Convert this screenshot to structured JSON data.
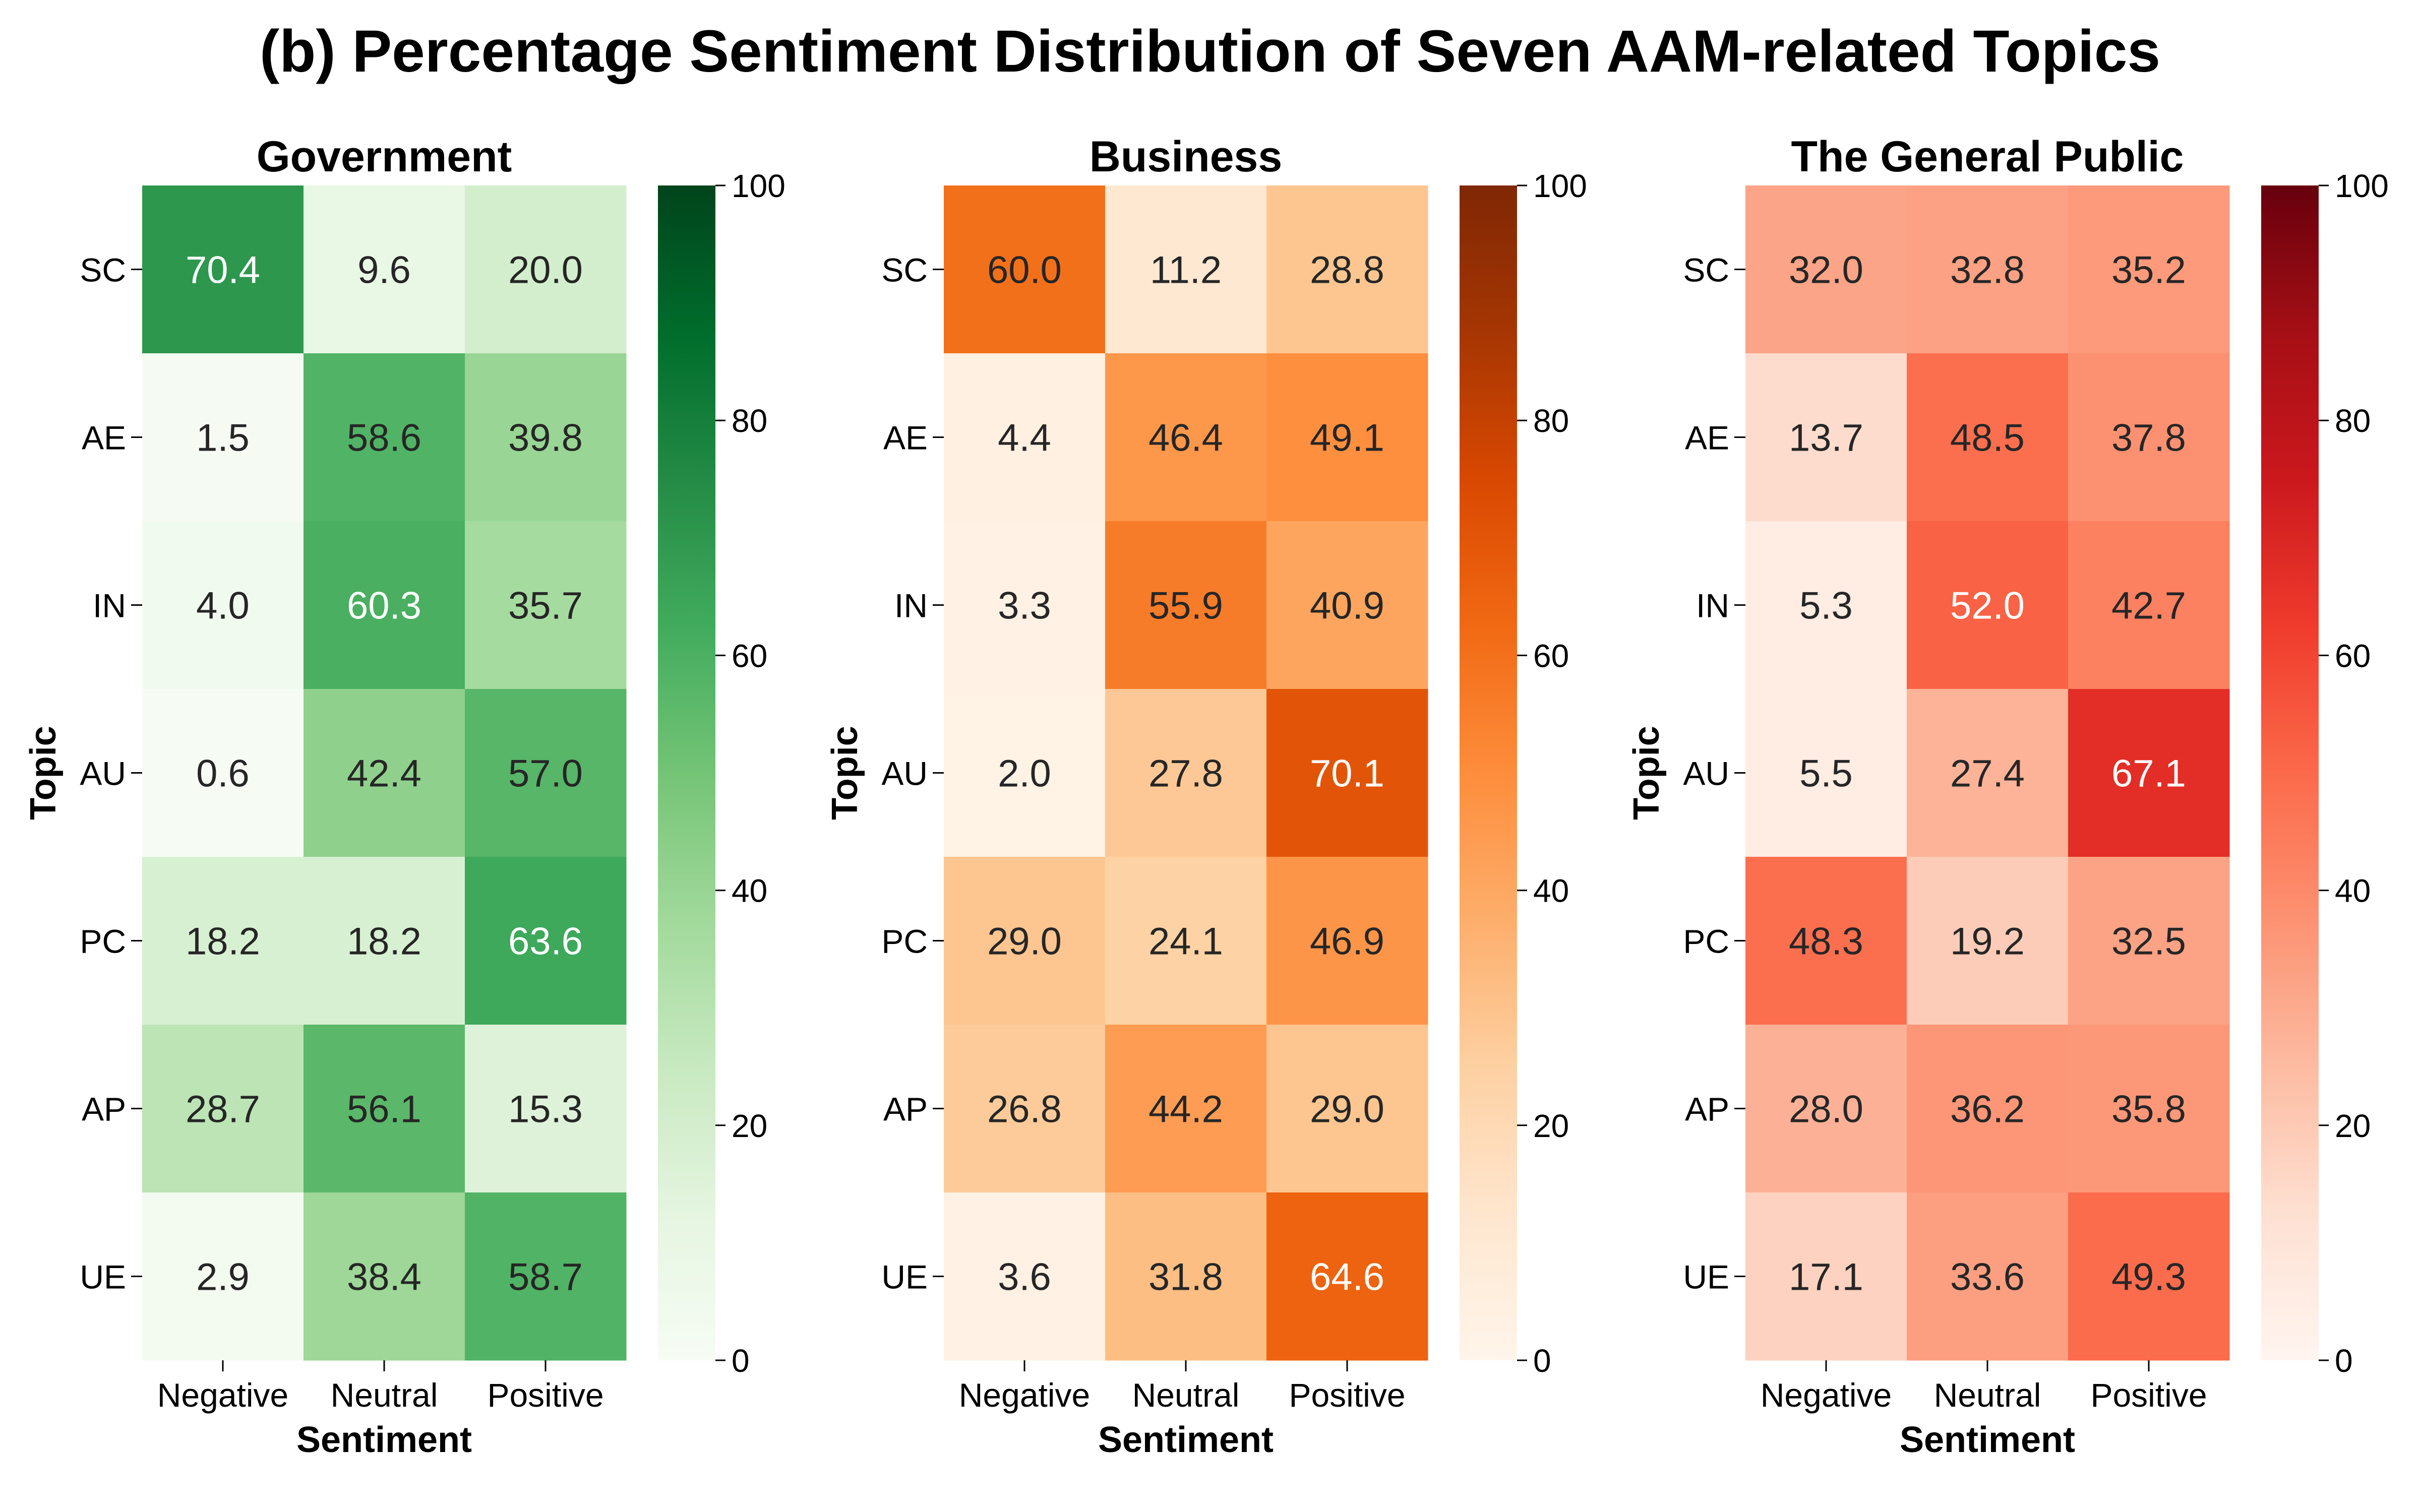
{
  "title": "(b) Percentage Sentiment Distribution of Seven AAM-related Topics",
  "chart_data": [
    {
      "type": "heatmap",
      "title": "Government",
      "xlabel": "Sentiment",
      "ylabel": "Topic",
      "x": [
        "Negative",
        "Neutral",
        "Positive"
      ],
      "y": [
        "SC",
        "AE",
        "IN",
        "AU",
        "PC",
        "AP",
        "UE"
      ],
      "values": [
        [
          70.4,
          9.6,
          20.0
        ],
        [
          1.5,
          58.6,
          39.8
        ],
        [
          4.0,
          60.3,
          35.7
        ],
        [
          0.6,
          42.4,
          57.0
        ],
        [
          18.2,
          18.2,
          63.6
        ],
        [
          28.7,
          56.1,
          15.3
        ],
        [
          2.9,
          38.4,
          58.7
        ]
      ],
      "colorbar": {
        "range": [
          0,
          100
        ],
        "ticks": [
          "0",
          "20",
          "40",
          "60",
          "80",
          "100"
        ],
        "colormap": "Greens",
        "light": "#f7fcf5",
        "dark": "#00441b"
      }
    },
    {
      "type": "heatmap",
      "title": "Business",
      "xlabel": "Sentiment",
      "ylabel": "Topic",
      "x": [
        "Negative",
        "Neutral",
        "Positive"
      ],
      "y": [
        "SC",
        "AE",
        "IN",
        "AU",
        "PC",
        "AP",
        "UE"
      ],
      "values": [
        [
          60.0,
          11.2,
          28.8
        ],
        [
          4.4,
          46.4,
          49.1
        ],
        [
          3.3,
          55.9,
          40.9
        ],
        [
          2.0,
          27.8,
          70.1
        ],
        [
          29.0,
          24.1,
          46.9
        ],
        [
          26.8,
          44.2,
          29.0
        ],
        [
          3.6,
          31.8,
          64.6
        ]
      ],
      "colorbar": {
        "range": [
          0,
          100
        ],
        "ticks": [
          "0",
          "20",
          "40",
          "60",
          "80",
          "100"
        ],
        "colormap": "Oranges",
        "light": "#fff5eb",
        "dark": "#7f2704"
      }
    },
    {
      "type": "heatmap",
      "title": "The General Public",
      "xlabel": "Sentiment",
      "ylabel": "Topic",
      "x": [
        "Negative",
        "Neutral",
        "Positive"
      ],
      "y": [
        "SC",
        "AE",
        "IN",
        "AU",
        "PC",
        "AP",
        "UE"
      ],
      "values": [
        [
          32.0,
          32.8,
          35.2
        ],
        [
          13.7,
          48.5,
          37.8
        ],
        [
          5.3,
          52.0,
          42.7
        ],
        [
          5.5,
          27.4,
          67.1
        ],
        [
          48.3,
          19.2,
          32.5
        ],
        [
          28.0,
          36.2,
          35.8
        ],
        [
          17.1,
          33.6,
          49.3
        ]
      ],
      "colorbar": {
        "range": [
          0,
          100
        ],
        "ticks": [
          "0",
          "20",
          "40",
          "60",
          "80",
          "100"
        ],
        "colormap": "Reds",
        "light": "#fff5f0",
        "dark": "#67000d"
      }
    }
  ]
}
